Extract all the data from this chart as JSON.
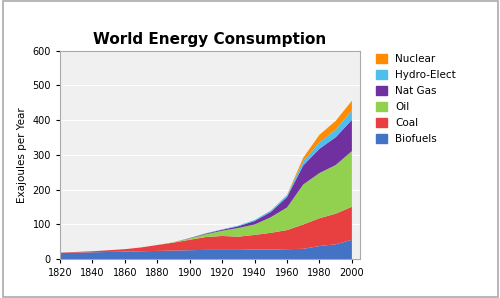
{
  "title": "World Energy Consumption",
  "ylabel": "Exajoules per Year",
  "years": [
    1820,
    1830,
    1840,
    1850,
    1860,
    1870,
    1880,
    1890,
    1900,
    1910,
    1920,
    1930,
    1940,
    1950,
    1960,
    1970,
    1980,
    1990,
    2000
  ],
  "biofuels": [
    18,
    19,
    20,
    21,
    22,
    23,
    24,
    25,
    26,
    27,
    27,
    27,
    28,
    28,
    29,
    30,
    38,
    43,
    56
  ],
  "coal": [
    1,
    2,
    3,
    5,
    7,
    11,
    17,
    23,
    30,
    37,
    40,
    38,
    42,
    48,
    55,
    70,
    80,
    88,
    95
  ],
  "oil": [
    0,
    0,
    0,
    0,
    0,
    0,
    0,
    1,
    4,
    8,
    15,
    25,
    30,
    45,
    65,
    115,
    130,
    140,
    160
  ],
  "nat_gas": [
    0,
    0,
    0,
    0,
    0,
    0,
    0,
    0,
    1,
    2,
    3,
    5,
    10,
    15,
    30,
    55,
    70,
    80,
    90
  ],
  "hydro": [
    0,
    0,
    0,
    0,
    0,
    0,
    0,
    0,
    0,
    1,
    1,
    2,
    3,
    4,
    5,
    12,
    18,
    22,
    27
  ],
  "nuclear": [
    0,
    0,
    0,
    0,
    0,
    0,
    0,
    0,
    0,
    0,
    0,
    0,
    0,
    0,
    1,
    10,
    22,
    25,
    28
  ],
  "colors": {
    "biofuels": "#4472C4",
    "coal": "#E84040",
    "oil": "#92D050",
    "nat_gas": "#7030A0",
    "hydro": "#4DBEEE",
    "nuclear": "#FF8C00"
  },
  "ylim": [
    0,
    600
  ],
  "xlim": [
    1820,
    2005
  ],
  "xticks": [
    1820,
    1840,
    1860,
    1880,
    1900,
    1920,
    1940,
    1960,
    1980,
    2000
  ],
  "yticks": [
    0,
    100,
    200,
    300,
    400,
    500,
    600
  ],
  "legend_labels": [
    "Nuclear",
    "Hydro-Elect",
    "Nat Gas",
    "Oil",
    "Coal",
    "Biofuels"
  ],
  "outer_border_color": "#d0d0d0",
  "plot_bg_color": "#f0f0f0",
  "background_color": "#ffffff",
  "grid_color": "#ffffff"
}
